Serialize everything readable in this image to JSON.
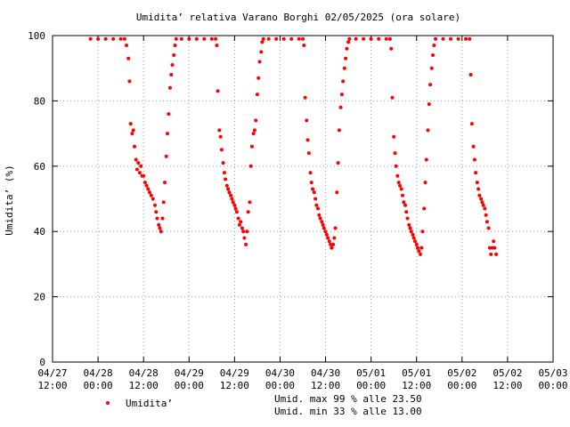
{
  "chart_data": {
    "type": "scatter",
    "title": "Umidita’ relativa  Varano Borghi 02/05/2025 (ora solare)",
    "ylabel": "Umidita’ (%)",
    "xlabel": "",
    "ylim": [
      0,
      100
    ],
    "yticks": [
      "0",
      "20",
      "40",
      "60",
      "80",
      "100"
    ],
    "x_unit": "hours since 04/27 12:00",
    "xlim": [
      0,
      132
    ],
    "xticks": [
      {
        "date": "04/27",
        "time": "12:00"
      },
      {
        "date": "04/28",
        "time": "00:00"
      },
      {
        "date": "04/28",
        "time": "12:00"
      },
      {
        "date": "04/29",
        "time": "00:00"
      },
      {
        "date": "04/29",
        "time": "12:00"
      },
      {
        "date": "04/30",
        "time": "00:00"
      },
      {
        "date": "04/30",
        "time": "12:00"
      },
      {
        "date": "05/01",
        "time": "00:00"
      },
      {
        "date": "05/01",
        "time": "12:00"
      },
      {
        "date": "05/02",
        "time": "00:00"
      },
      {
        "date": "05/02",
        "time": "12:00"
      },
      {
        "date": "05/03",
        "time": "00:00"
      }
    ],
    "grid": true,
    "legend_position": "bottom-left",
    "series": [
      {
        "name": "Umidita’",
        "color": "#ff0000",
        "points": [
          [
            10.0,
            99
          ],
          [
            12.0,
            99
          ],
          [
            14.0,
            99
          ],
          [
            16.0,
            99
          ],
          [
            18.0,
            99
          ],
          [
            19.0,
            99
          ],
          [
            19.5,
            97
          ],
          [
            20.0,
            93
          ],
          [
            20.3,
            86
          ],
          [
            20.6,
            73
          ],
          [
            21.0,
            70
          ],
          [
            21.3,
            71
          ],
          [
            21.6,
            66
          ],
          [
            22.0,
            62
          ],
          [
            22.3,
            59
          ],
          [
            22.6,
            61
          ],
          [
            23.0,
            58
          ],
          [
            23.3,
            60
          ],
          [
            23.6,
            57
          ],
          [
            24.0,
            57
          ],
          [
            24.4,
            55
          ],
          [
            24.8,
            54
          ],
          [
            25.2,
            53
          ],
          [
            25.6,
            52
          ],
          [
            26.0,
            51
          ],
          [
            26.5,
            50
          ],
          [
            27.0,
            48
          ],
          [
            27.3,
            46
          ],
          [
            27.6,
            44
          ],
          [
            28.0,
            42
          ],
          [
            28.3,
            41
          ],
          [
            28.6,
            40
          ],
          [
            29.0,
            44
          ],
          [
            29.3,
            49
          ],
          [
            29.6,
            55
          ],
          [
            30.0,
            63
          ],
          [
            30.3,
            70
          ],
          [
            30.6,
            76
          ],
          [
            31.0,
            84
          ],
          [
            31.3,
            88
          ],
          [
            31.6,
            91
          ],
          [
            32.0,
            94
          ],
          [
            32.3,
            97
          ],
          [
            32.6,
            99
          ],
          [
            34.0,
            99
          ],
          [
            36.0,
            99
          ],
          [
            38.0,
            99
          ],
          [
            40.0,
            99
          ],
          [
            42.0,
            99
          ],
          [
            43.0,
            99
          ],
          [
            43.3,
            97
          ],
          [
            43.6,
            83
          ],
          [
            44.0,
            71
          ],
          [
            44.3,
            69
          ],
          [
            44.6,
            65
          ],
          [
            45.0,
            61
          ],
          [
            45.3,
            58
          ],
          [
            45.6,
            56
          ],
          [
            46.0,
            54
          ],
          [
            46.3,
            53
          ],
          [
            46.6,
            52
          ],
          [
            47.0,
            51
          ],
          [
            47.3,
            50
          ],
          [
            47.6,
            49
          ],
          [
            48.0,
            48
          ],
          [
            48.3,
            47
          ],
          [
            48.6,
            46
          ],
          [
            49.0,
            44
          ],
          [
            49.3,
            42
          ],
          [
            49.6,
            43
          ],
          [
            50.0,
            41
          ],
          [
            50.3,
            40
          ],
          [
            50.6,
            38
          ],
          [
            51.0,
            36
          ],
          [
            51.3,
            40
          ],
          [
            51.6,
            46
          ],
          [
            52.0,
            49
          ],
          [
            52.3,
            60
          ],
          [
            52.6,
            66
          ],
          [
            53.0,
            70
          ],
          [
            53.3,
            71
          ],
          [
            53.6,
            74
          ],
          [
            54.0,
            82
          ],
          [
            54.3,
            87
          ],
          [
            54.6,
            92
          ],
          [
            55.0,
            95
          ],
          [
            55.3,
            98
          ],
          [
            55.6,
            99
          ],
          [
            57.0,
            99
          ],
          [
            59.0,
            99
          ],
          [
            61.0,
            99
          ],
          [
            63.0,
            99
          ],
          [
            65.0,
            99
          ],
          [
            66.0,
            99
          ],
          [
            66.3,
            97
          ],
          [
            66.6,
            81
          ],
          [
            67.0,
            74
          ],
          [
            67.3,
            68
          ],
          [
            67.6,
            64
          ],
          [
            68.0,
            58
          ],
          [
            68.3,
            55
          ],
          [
            68.6,
            53
          ],
          [
            69.0,
            52
          ],
          [
            69.3,
            50
          ],
          [
            69.6,
            48
          ],
          [
            70.0,
            47
          ],
          [
            70.3,
            45
          ],
          [
            70.6,
            44
          ],
          [
            71.0,
            43
          ],
          [
            71.3,
            42
          ],
          [
            71.6,
            41
          ],
          [
            72.0,
            40
          ],
          [
            72.3,
            39
          ],
          [
            72.6,
            38
          ],
          [
            73.0,
            37
          ],
          [
            73.3,
            36
          ],
          [
            73.6,
            35
          ],
          [
            74.0,
            36
          ],
          [
            74.3,
            38
          ],
          [
            74.6,
            41
          ],
          [
            75.0,
            52
          ],
          [
            75.3,
            61
          ],
          [
            75.6,
            71
          ],
          [
            76.0,
            78
          ],
          [
            76.3,
            82
          ],
          [
            76.6,
            86
          ],
          [
            77.0,
            90
          ],
          [
            77.3,
            93
          ],
          [
            77.6,
            96
          ],
          [
            78.0,
            98
          ],
          [
            78.3,
            99
          ],
          [
            80.0,
            99
          ],
          [
            82.0,
            99
          ],
          [
            84.0,
            99
          ],
          [
            86.0,
            99
          ],
          [
            88.0,
            99
          ],
          [
            89.0,
            99
          ],
          [
            89.3,
            96
          ],
          [
            89.6,
            81
          ],
          [
            90.0,
            69
          ],
          [
            90.3,
            64
          ],
          [
            90.6,
            60
          ],
          [
            91.0,
            57
          ],
          [
            91.3,
            55
          ],
          [
            91.6,
            54
          ],
          [
            92.0,
            53
          ],
          [
            92.3,
            51
          ],
          [
            92.6,
            49
          ],
          [
            93.0,
            48
          ],
          [
            93.3,
            46
          ],
          [
            93.6,
            44
          ],
          [
            94.0,
            42
          ],
          [
            94.3,
            41
          ],
          [
            94.6,
            40
          ],
          [
            95.0,
            39
          ],
          [
            95.3,
            38
          ],
          [
            95.6,
            37
          ],
          [
            96.0,
            36
          ],
          [
            96.3,
            35
          ],
          [
            96.6,
            34
          ],
          [
            97.0,
            33
          ],
          [
            97.3,
            35
          ],
          [
            97.6,
            40
          ],
          [
            98.0,
            47
          ],
          [
            98.3,
            55
          ],
          [
            98.6,
            62
          ],
          [
            99.0,
            71
          ],
          [
            99.3,
            79
          ],
          [
            99.6,
            85
          ],
          [
            100.0,
            90
          ],
          [
            100.3,
            94
          ],
          [
            100.6,
            97
          ],
          [
            101.0,
            99
          ],
          [
            103.0,
            99
          ],
          [
            105.0,
            99
          ],
          [
            107.0,
            99
          ],
          [
            109.0,
            99
          ],
          [
            110.0,
            99
          ],
          [
            110.3,
            88
          ],
          [
            110.6,
            73
          ],
          [
            111.0,
            66
          ],
          [
            111.3,
            62
          ],
          [
            111.6,
            58
          ],
          [
            112.0,
            55
          ],
          [
            112.3,
            53
          ],
          [
            112.6,
            51
          ],
          [
            113.0,
            50
          ],
          [
            113.3,
            49
          ],
          [
            113.6,
            48
          ],
          [
            114.0,
            47
          ],
          [
            114.3,
            45
          ],
          [
            114.6,
            43
          ],
          [
            115.0,
            41
          ],
          [
            115.3,
            35
          ],
          [
            115.6,
            33
          ],
          [
            116.0,
            35
          ],
          [
            116.3,
            37
          ],
          [
            116.6,
            35
          ],
          [
            117.0,
            33
          ]
        ]
      }
    ],
    "annotations": [
      "Umid. max 99 % alle 23.50",
      "Umid. min 33 % alle 13.00"
    ]
  }
}
